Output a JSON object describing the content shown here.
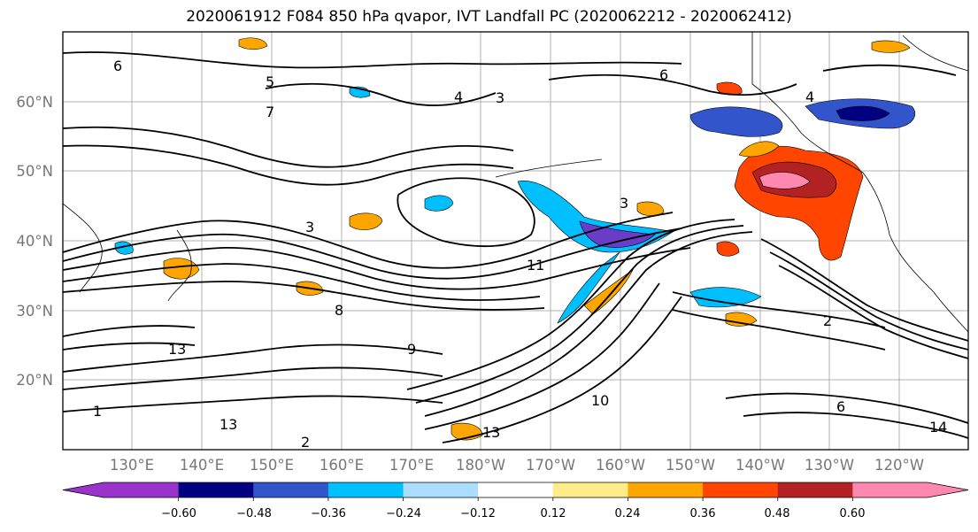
{
  "title": "2020061912 F084 850 hPa qvapor, IVT Landfall PC (2020062212 - 2020062412)",
  "map": {
    "lat_labels": [
      "60°N",
      "50°N",
      "40°N",
      "30°N",
      "20°N"
    ],
    "lon_labels": [
      "130°E",
      "140°E",
      "150°E",
      "160°E",
      "170°E",
      "180°W",
      "170°W",
      "160°W",
      "150°W",
      "140°W",
      "130°W",
      "120°W"
    ],
    "contour_labels": [
      "3",
      "6",
      "8",
      "11",
      "13",
      "14",
      "10",
      "9",
      "4",
      "2",
      "1",
      "7",
      "5"
    ]
  },
  "colorbar": {
    "colors": [
      "#9933cc",
      "#000080",
      "#3355cc",
      "#00bfff",
      "#aaddff",
      "#ffffff",
      "#ffeb88",
      "#ffa500",
      "#ff4500",
      "#b22222",
      "#ff88b0"
    ],
    "tick_labels": [
      "−0.60",
      "−0.48",
      "−0.36",
      "−0.24",
      "−0.12",
      "0.12",
      "0.24",
      "0.36",
      "0.48",
      "0.60"
    ]
  }
}
